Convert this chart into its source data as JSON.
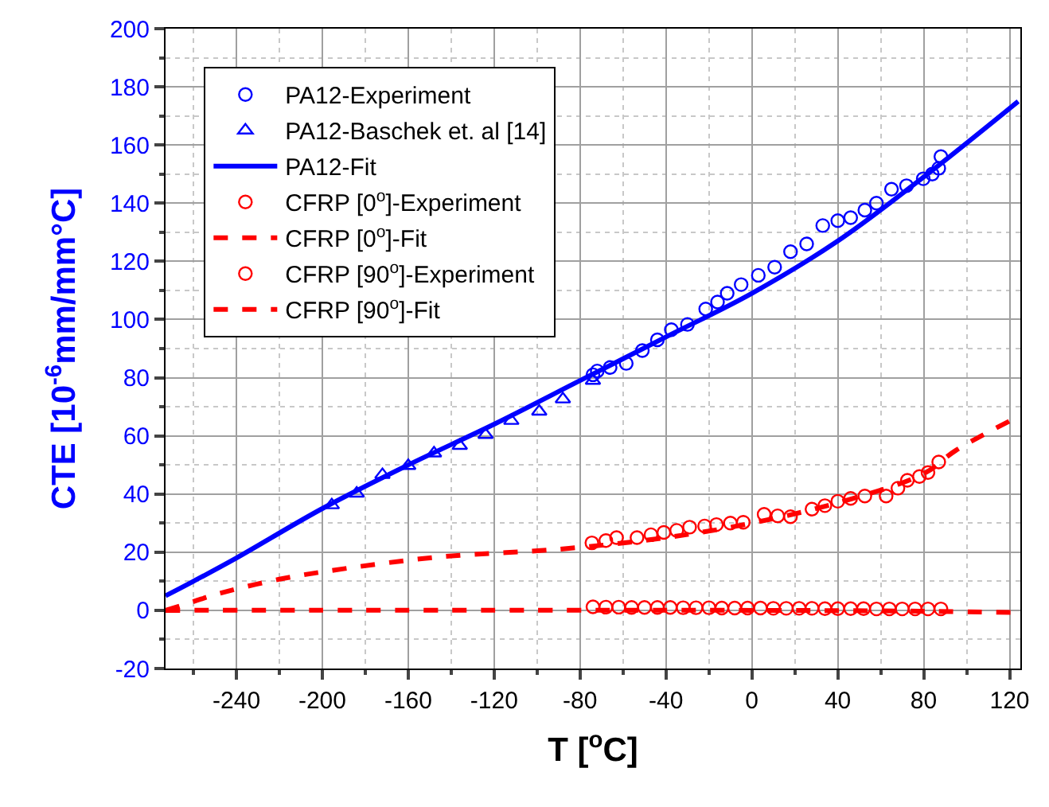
{
  "chart_data": {
    "type": "scatter",
    "xlabel": "T [$^{o}$C]",
    "ylabel": "CTE [10$^{-6}$mm/mm°C]",
    "xlim": [
      -273,
      125
    ],
    "xticks": [
      -240,
      -200,
      -160,
      -120,
      -80,
      -40,
      0,
      40,
      80,
      120
    ],
    "ylim": [
      -20,
      200
    ],
    "yticks": [
      -20,
      0,
      20,
      40,
      60,
      80,
      100,
      120,
      140,
      160,
      180,
      200
    ],
    "grid": true,
    "legend": "top left",
    "series": [
      {
        "name": "PA12-Experiment",
        "marker": "circle",
        "color": "#0000ff",
        "x": [
          -74,
          -72,
          -66,
          -58.5,
          -51,
          -44,
          -37.5,
          -30,
          -21.5,
          -16,
          -11.5,
          -5,
          3,
          10.6,
          18,
          25.5,
          33,
          40,
          46,
          52.6,
          58,
          65,
          72,
          79.8,
          84,
          87,
          88
        ],
        "values": [
          81,
          82.3,
          83.5,
          84.9,
          89.3,
          93,
          96.5,
          98.3,
          103.6,
          106,
          109,
          112,
          115.2,
          118,
          123.3,
          126,
          132.3,
          134,
          135,
          137.6,
          140,
          144.8,
          146,
          148.4,
          150,
          152,
          156
        ]
      },
      {
        "name": "PA12-Baschek et. al [14]",
        "marker": "triangle",
        "color": "#0000ff",
        "x": [
          -195.6,
          -184,
          -172,
          -160,
          -148,
          -136,
          -124,
          -112,
          -99,
          -88,
          -74
        ],
        "values": [
          36.2,
          40.2,
          46.6,
          49.7,
          54,
          56.6,
          60.4,
          65.2,
          68.4,
          72.6,
          79
        ]
      },
      {
        "name": "PA12-Fit",
        "type": "line",
        "marker": "none",
        "line_style": "solid",
        "color": "#0000ff",
        "x": [
          -273,
          -260,
          -240,
          -200,
          -160,
          -120,
          -80,
          -40,
          0,
          40,
          80,
          124
        ],
        "values": [
          5,
          10,
          18,
          35,
          50,
          64,
          79,
          94,
          109,
          127,
          149,
          175
        ]
      },
      {
        "name": "CFRP [0$^{o}$]-Experiment",
        "marker": "circle",
        "color": "#ff0000",
        "x": [
          -74,
          -68,
          -62,
          -56,
          -50,
          -44,
          -38,
          -32,
          -26,
          -20,
          -14,
          -8,
          -2,
          4,
          10,
          16,
          22,
          28,
          34,
          40,
          46,
          52,
          58,
          64,
          70,
          76,
          82,
          88
        ],
        "values": [
          1.2,
          1.1,
          1.1,
          1,
          1,
          1,
          1,
          0.9,
          0.9,
          0.9,
          0.8,
          0.8,
          0.8,
          0.8,
          0.7,
          0.7,
          0.7,
          0.7,
          0.6,
          0.6,
          0.6,
          0.6,
          0.5,
          0.5,
          0.5,
          0.5,
          0.5,
          0.5
        ]
      },
      {
        "name": "CFRP [0$^{o}$]-Fit",
        "type": "line",
        "marker": "none",
        "line_style": "dashed",
        "color": "#ff0000",
        "x": [
          -273,
          0,
          80,
          125
        ],
        "values": [
          0,
          0,
          -0.3,
          -0.8
        ]
      },
      {
        "name": "CFRP [90$^{o}$]-Experiment",
        "marker": "circle",
        "color": "#ff0000",
        "x": [
          -74.5,
          -68,
          -63,
          -53.5,
          -47,
          -41,
          -35,
          -29,
          -22,
          -16.5,
          -10,
          -4,
          5.7,
          12,
          18,
          28,
          34,
          40,
          46,
          52.6,
          62.5,
          68,
          72.4,
          78,
          82,
          87
        ],
        "values": [
          23.2,
          24,
          25,
          25,
          26,
          26.8,
          27.5,
          28.6,
          29,
          29.5,
          30,
          30.3,
          33,
          32.5,
          32.2,
          34.8,
          36,
          37.5,
          38.5,
          39.3,
          39.3,
          42,
          44.7,
          46,
          47.4,
          51
        ]
      },
      {
        "name": "CFRP [90$^{o}$]-Fit",
        "type": "line",
        "marker": "none",
        "line_style": "dashed",
        "color": "#ff0000",
        "x": [
          -273,
          -260,
          -250,
          -220,
          -190,
          -145,
          -90,
          -40,
          0,
          40,
          80,
          95,
          125
        ],
        "values": [
          0,
          3,
          5.4,
          10.7,
          14.3,
          18.4,
          21,
          25,
          30,
          37,
          47,
          55,
          67
        ]
      }
    ]
  }
}
